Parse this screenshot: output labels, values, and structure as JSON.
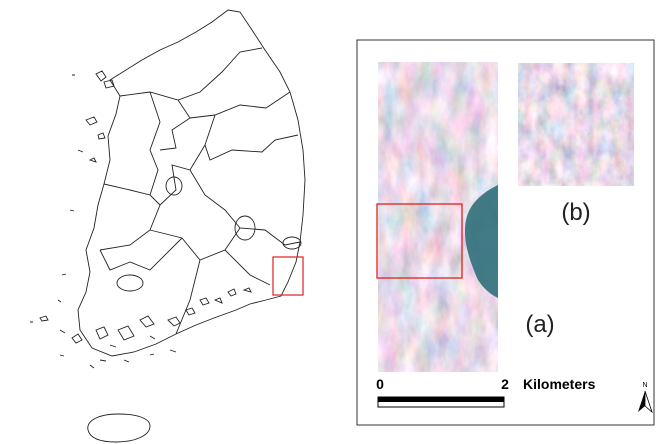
{
  "figure": {
    "panel_a_label": "(a)",
    "panel_b_label": "(b)",
    "scale_bar": {
      "start": "0",
      "end": "2",
      "unit": "Kilometers"
    },
    "north_label": "N"
  }
}
